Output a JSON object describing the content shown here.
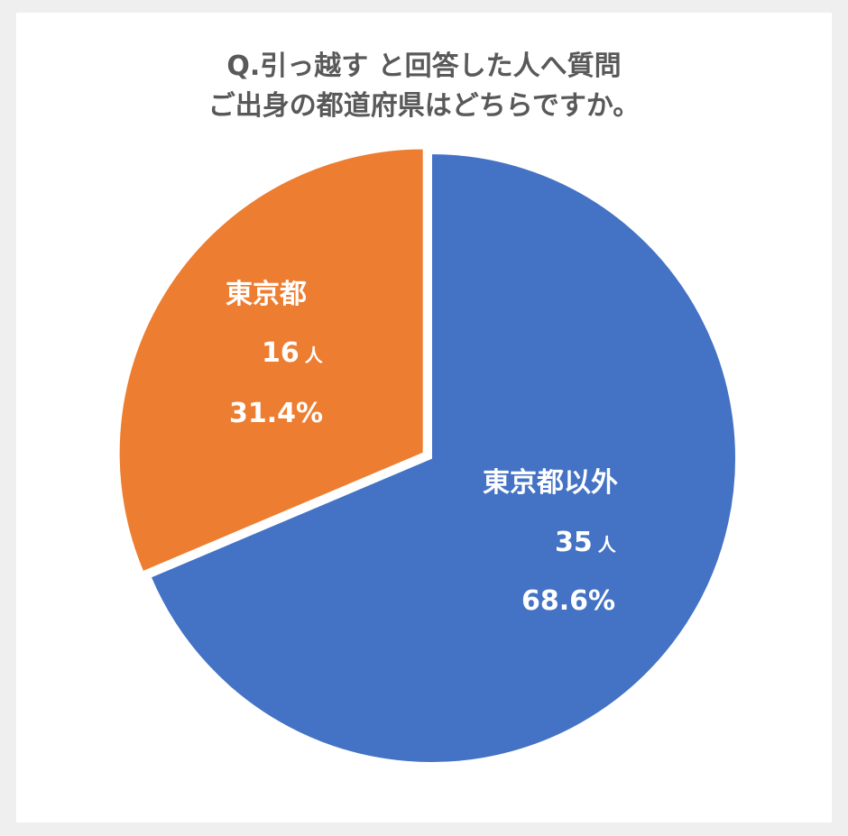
{
  "title": {
    "line1": "Q.引っ越す と回答した人へ質問",
    "line2": "ご出身の都道府県はどちらですか。"
  },
  "chart_data": {
    "type": "pie",
    "title": "Q.引っ越す と回答した人へ質問 ご出身の都道府県はどちらですか。",
    "categories": [
      "東京都以外",
      "東京都"
    ],
    "values": [
      35,
      16
    ],
    "percentages": [
      "68.6%",
      "31.4%"
    ],
    "unit": "人",
    "colors": [
      "#4472c4",
      "#ed7d31"
    ],
    "exploded": "東京都",
    "legend": "none"
  },
  "labels": {
    "other": {
      "name": "東京都以外",
      "count": "35",
      "unit": "人",
      "pct": "68.6%"
    },
    "tokyo": {
      "name": "東京都",
      "count": "16",
      "unit": "人",
      "pct": "31.4%"
    }
  }
}
